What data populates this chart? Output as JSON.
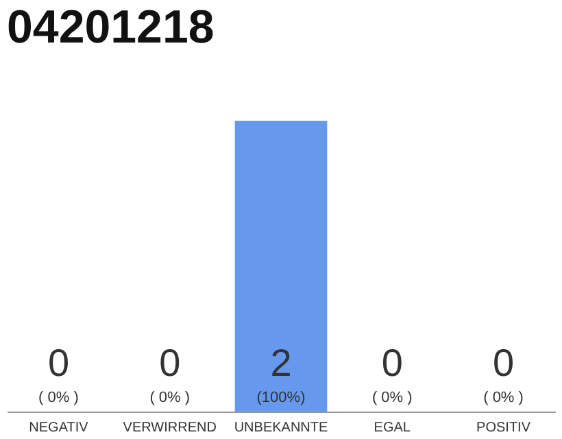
{
  "chart_data": {
    "type": "bar",
    "title": "04201218",
    "categories": [
      "NEGATIV",
      "VERWIRREND",
      "UNBEKANNTE",
      "EGAL",
      "POSITIV"
    ],
    "values": [
      0,
      0,
      2,
      0,
      0
    ],
    "color": "#6699ee",
    "data_labels": true,
    "tick_labels": "x",
    "annotations": [
      {
        "text": "( 0% )",
        "x": "NEGATIV",
        "y": 0
      },
      {
        "text": "( 0% )",
        "x": "VERWIRREND",
        "y": 0
      },
      {
        "text": "(100%)",
        "x": "UNBEKANNTE",
        "y": 0
      },
      {
        "text": "( 0% )",
        "x": "EGAL",
        "y": 0
      },
      {
        "text": "( 0% )",
        "x": "POSITIV",
        "y": 0
      }
    ]
  }
}
